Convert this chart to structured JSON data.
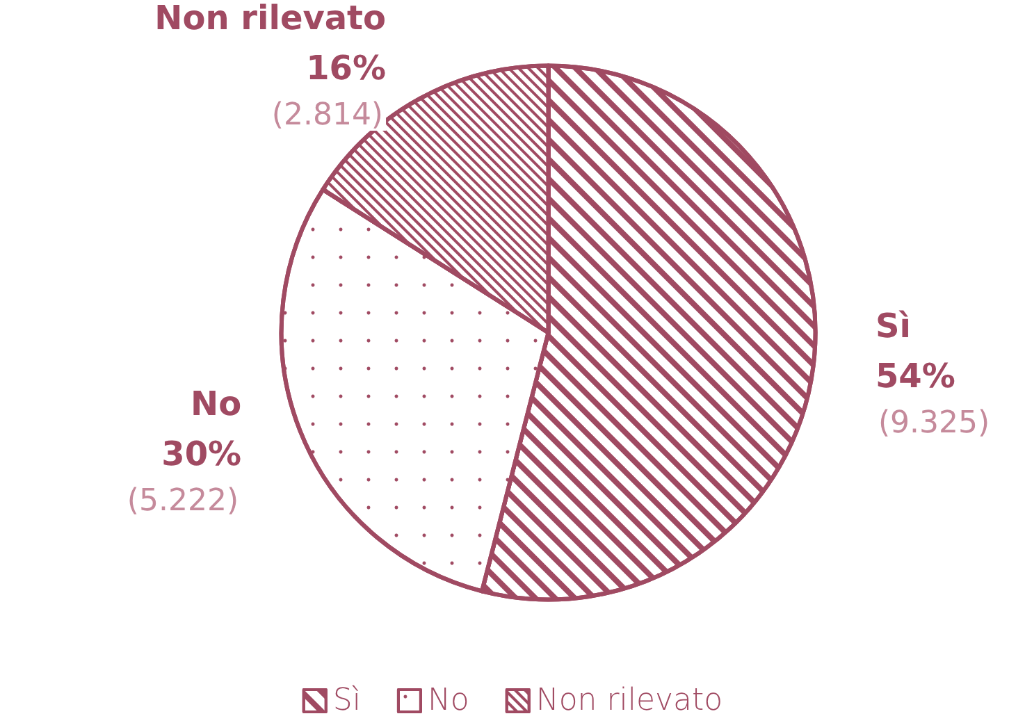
{
  "chart_data": {
    "type": "pie",
    "categories": [
      "Sì",
      "No",
      "Non rilevato"
    ],
    "values": [
      54,
      30,
      16
    ],
    "value_labels": [
      "54%\n(9.325)",
      "30%\n(5.222)",
      "16%\n(2.814)"
    ],
    "colors": [
      "#a04a62",
      "#a04a62",
      "#a04a62"
    ],
    "legend": "bottom"
  }
}
